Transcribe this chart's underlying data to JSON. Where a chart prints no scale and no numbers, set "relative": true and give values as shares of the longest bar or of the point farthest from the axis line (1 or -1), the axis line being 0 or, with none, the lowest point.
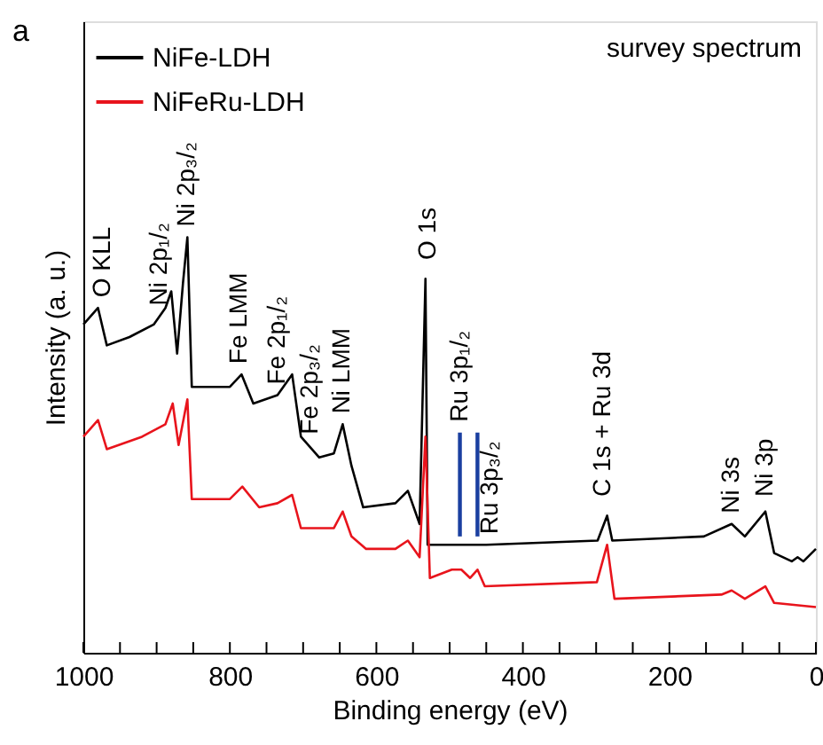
{
  "chart_data": {
    "type": "line",
    "relative": true,
    "xlabel": "Binding energy (eV)",
    "ylabel": "Intensity (a. u.)",
    "xlim": [
      1000,
      0
    ],
    "xticks": [
      1000,
      {
        "value": 950,
        "label": null
      },
      {
        "value": 900,
        "label": null
      },
      {
        "value": 850,
        "label": null
      },
      800,
      {
        "value": 750,
        "label": null
      },
      {
        "value": 700,
        "label": null
      },
      {
        "value": 650,
        "label": null
      },
      600,
      {
        "value": 550,
        "label": null
      },
      {
        "value": 500,
        "label": null
      },
      {
        "value": 450,
        "label": null
      },
      400,
      {
        "value": 350,
        "label": null
      },
      {
        "value": 300,
        "label": null
      },
      {
        "value": 250,
        "label": null
      },
      200,
      {
        "value": 150,
        "label": null
      },
      {
        "value": 100,
        "label": null
      },
      {
        "value": 50,
        "label": null
      },
      0
    ],
    "grid": false,
    "legend": "top left",
    "series": [
      {
        "name": "NiFe-LDH",
        "color": "#000000",
        "x": [
          1000,
          980,
          968,
          937,
          904,
          888,
          880,
          872,
          864,
          858,
          852,
          832,
          800,
          784,
          768,
          735,
          715,
          703,
          678,
          658,
          646,
          634,
          618,
          574,
          557,
          541,
          533,
          530,
          450,
          298,
          285,
          278,
          153,
          115,
          97,
          69,
          57,
          33,
          25,
          17,
          0
        ],
        "values": [
          0.79,
          0.83,
          0.74,
          0.76,
          0.79,
          0.83,
          0.87,
          0.72,
          0.89,
          1.0,
          0.64,
          0.64,
          0.64,
          0.67,
          0.6,
          0.62,
          0.67,
          0.52,
          0.47,
          0.48,
          0.55,
          0.45,
          0.35,
          0.36,
          0.39,
          0.31,
          0.9,
          0.26,
          0.26,
          0.27,
          0.33,
          0.27,
          0.28,
          0.31,
          0.28,
          0.34,
          0.24,
          0.22,
          0.23,
          0.22,
          0.25
        ]
      },
      {
        "name": "NiFeRu-LDH",
        "color": "#e8141c",
        "x": [
          1000,
          980,
          968,
          920,
          888,
          878,
          870,
          858,
          852,
          800,
          783,
          760,
          735,
          715,
          703,
          658,
          646,
          634,
          614,
          574,
          557,
          541,
          533,
          527,
          497,
          484,
          472,
          462,
          452,
          299,
          285,
          275,
          129,
          115,
          97,
          69,
          57,
          0
        ],
        "values": [
          0.52,
          0.56,
          0.49,
          0.52,
          0.55,
          0.6,
          0.5,
          0.61,
          0.37,
          0.37,
          0.4,
          0.35,
          0.36,
          0.38,
          0.3,
          0.3,
          0.34,
          0.28,
          0.25,
          0.25,
          0.27,
          0.23,
          0.52,
          0.18,
          0.2,
          0.2,
          0.18,
          0.2,
          0.16,
          0.17,
          0.26,
          0.13,
          0.14,
          0.15,
          0.13,
          0.16,
          0.12,
          0.11
        ]
      },
      {
        "color": "#1a3fa0",
        "x": [
          486,
          486
        ],
        "values": [
          0.53,
          0.28
        ]
      },
      {
        "color": "#1a3fa0",
        "x": [
          462,
          462
        ],
        "values": [
          0.53,
          0.28
        ]
      }
    ],
    "annotations": [
      "a",
      "survey spectrum",
      {
        "text": "O KLL",
        "x": 973,
        "y": 0.83
      },
      {
        "text": "Ni 2p₁/₂",
        "x": 896,
        "y": 0.81
      },
      {
        "text": "Ni 2p₃/₂",
        "x": 858,
        "y": 1.0
      },
      {
        "text": "Fe LMM",
        "x": 787,
        "y": 0.67
      },
      {
        "text": "Fe 2p₁/₂",
        "x": 735,
        "y": 0.62
      },
      {
        "text": "Fe 2p₃/₂",
        "x": 690,
        "y": 0.5
      },
      {
        "text": "Ni LMM",
        "x": 646,
        "y": 0.55
      },
      {
        "text": "O 1s",
        "x": 529,
        "y": 0.92
      },
      {
        "text": "Ru 3p₁/₂",
        "x": 486,
        "y": 0.53
      },
      {
        "text": "Ru 3p₃/₂",
        "x": 444,
        "y": 0.26
      },
      {
        "text": "C 1s + Ru 3d",
        "x": 291,
        "y": 0.35
      },
      {
        "text": "Ni 3s",
        "x": 115,
        "y": 0.31
      },
      {
        "text": "Ni 3p",
        "x": 69,
        "y": 0.35
      }
    ]
  }
}
